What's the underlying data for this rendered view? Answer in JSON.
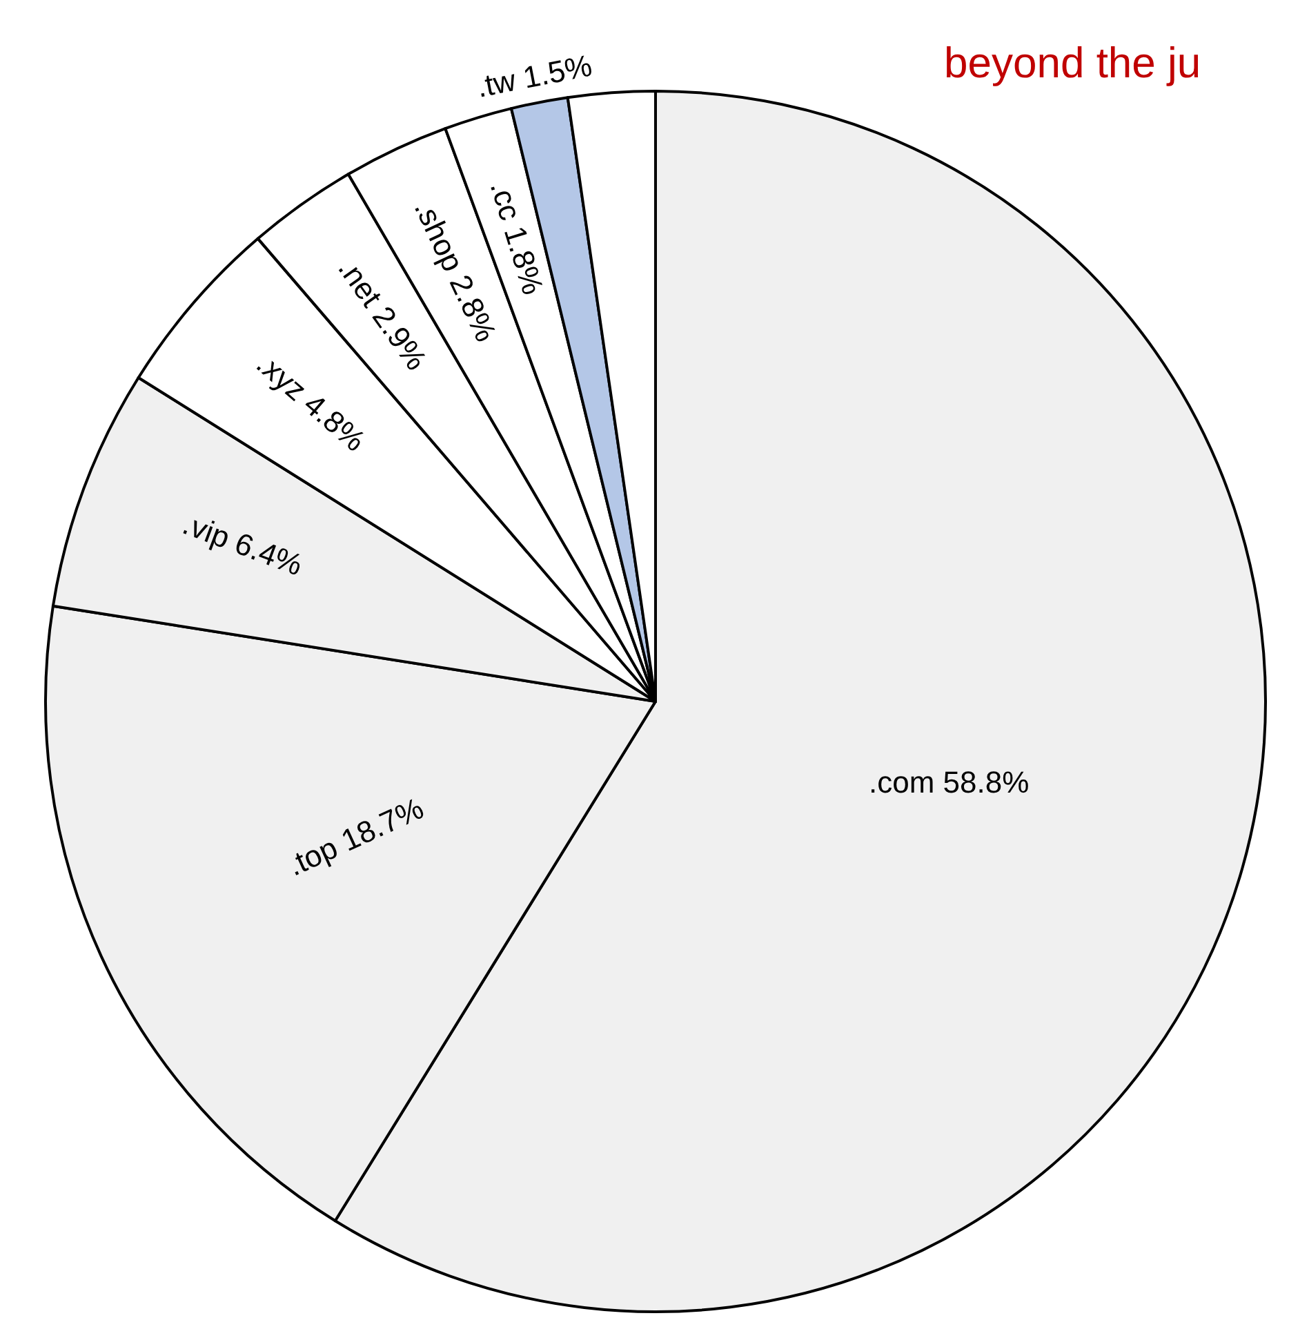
{
  "chart_data": {
    "type": "pie",
    "categories": [
      ".com",
      ".top",
      ".vip",
      ".xyz",
      ".net",
      ".shop",
      ".cc",
      ".tw",
      null
    ],
    "values": [
      58.8,
      18.7,
      6.4,
      4.8,
      2.9,
      2.8,
      1.8,
      1.5,
      2.3
    ],
    "value_labels": [
      "58.8%",
      "18.7%",
      "6.4%",
      "4.8%",
      "2.9%",
      "2.8%",
      "1.8%",
      "1.5%",
      null
    ],
    "colors": [
      "#f0f0f0",
      "#f0f0f0",
      "#f0f0f0",
      "#ffffff",
      "#ffffff",
      "#ffffff",
      "#ffffff",
      "#b4c7e7",
      "#ffffff"
    ],
    "annotations": [
      "beyond the ju"
    ]
  }
}
